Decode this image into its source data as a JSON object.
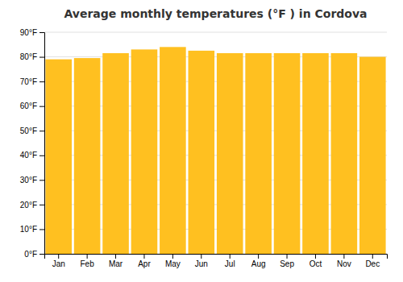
{
  "chart_data": {
    "type": "bar",
    "title": "Average monthly temperatures (°F ) in Cordova",
    "categories": [
      "Jan",
      "Feb",
      "Mar",
      "Apr",
      "May",
      "Jun",
      "Jul",
      "Aug",
      "Sep",
      "Oct",
      "Nov",
      "Dec"
    ],
    "values": [
      79,
      79.5,
      81.5,
      83,
      84,
      82.5,
      81.5,
      81.5,
      81.5,
      81.5,
      81.5,
      80
    ],
    "color": "#FFC020",
    "ylim": [
      0,
      90
    ],
    "yticks": [
      {
        "value": 0,
        "label": "0°F"
      },
      {
        "value": 10,
        "label": "10°F"
      },
      {
        "value": 20,
        "label": "20°F"
      },
      {
        "value": 30,
        "label": "30°F"
      },
      {
        "value": 40,
        "label": "40°F"
      },
      {
        "value": 50,
        "label": "50°F"
      },
      {
        "value": 60,
        "label": "60°F"
      },
      {
        "value": 70,
        "label": "70°F"
      },
      {
        "value": 80,
        "label": "80°F"
      },
      {
        "value": 90,
        "label": "90°F"
      }
    ],
    "grid": true
  }
}
